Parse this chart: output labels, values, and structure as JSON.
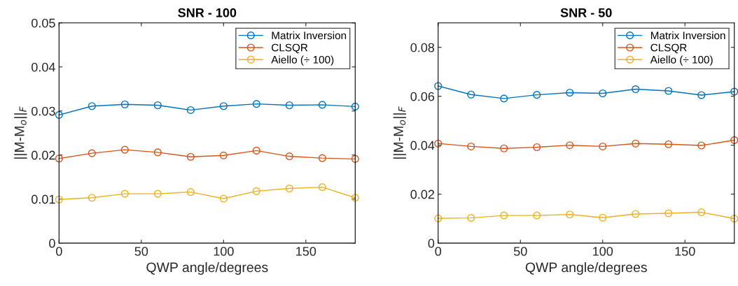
{
  "chart_data": [
    {
      "type": "line",
      "title": "SNR - 100",
      "xlabel": "QWP angle/degrees",
      "ylabel": "||M-M$_{o}$||$_{F}$",
      "x": [
        0,
        20,
        40,
        60,
        80,
        100,
        120,
        140,
        160,
        180
      ],
      "xlim": [
        0,
        180
      ],
      "xticks": [
        0,
        50,
        100,
        150
      ],
      "ylim": [
        0,
        0.05
      ],
      "yticks": [
        0,
        0.01,
        0.02,
        0.03,
        0.04,
        0.05
      ],
      "grid": false,
      "legend": "top right",
      "marker": "circle",
      "line_style": "solid",
      "series": [
        {
          "name": "Matrix Inversion",
          "color": "#0072bd",
          "values": [
            0.0291,
            0.0311,
            0.0315,
            0.0313,
            0.0302,
            0.0311,
            0.0316,
            0.0313,
            0.0314,
            0.031
          ]
        },
        {
          "name": "CLSQR",
          "color": "#d95319",
          "values": [
            0.0192,
            0.0204,
            0.0212,
            0.0206,
            0.0196,
            0.0199,
            0.021,
            0.0197,
            0.0193,
            0.0191
          ]
        },
        {
          "name": "Aiello (÷ 100)",
          "color": "#edb120",
          "values": [
            0.0099,
            0.0103,
            0.0112,
            0.0112,
            0.0116,
            0.0101,
            0.0118,
            0.0124,
            0.0127,
            0.0103
          ]
        }
      ]
    },
    {
      "type": "line",
      "title": "SNR - 50",
      "xlabel": "QWP angle/degrees",
      "ylabel": "||M-M$_{o}$||$_{F}$",
      "x": [
        0,
        20,
        40,
        60,
        80,
        100,
        120,
        140,
        160,
        180
      ],
      "xlim": [
        0,
        180
      ],
      "xticks": [
        0,
        50,
        100,
        150
      ],
      "ylim": [
        0,
        0.09
      ],
      "yticks": [
        0,
        0.02,
        0.04,
        0.06,
        0.08
      ],
      "grid": false,
      "legend": "top right",
      "marker": "circle",
      "line_style": "solid",
      "series": [
        {
          "name": "Matrix Inversion",
          "color": "#0072bd",
          "values": [
            0.0642,
            0.0607,
            0.0591,
            0.0606,
            0.0615,
            0.0612,
            0.0629,
            0.0622,
            0.0605,
            0.0619
          ]
        },
        {
          "name": "CLSQR",
          "color": "#d95319",
          "values": [
            0.0407,
            0.0395,
            0.0387,
            0.0392,
            0.04,
            0.0395,
            0.0407,
            0.0404,
            0.0399,
            0.0421
          ]
        },
        {
          "name": "Aiello (÷ 100)",
          "color": "#edb120",
          "values": [
            0.0101,
            0.0103,
            0.0113,
            0.0113,
            0.0117,
            0.0104,
            0.0119,
            0.0122,
            0.0126,
            0.01
          ]
        }
      ]
    }
  ]
}
